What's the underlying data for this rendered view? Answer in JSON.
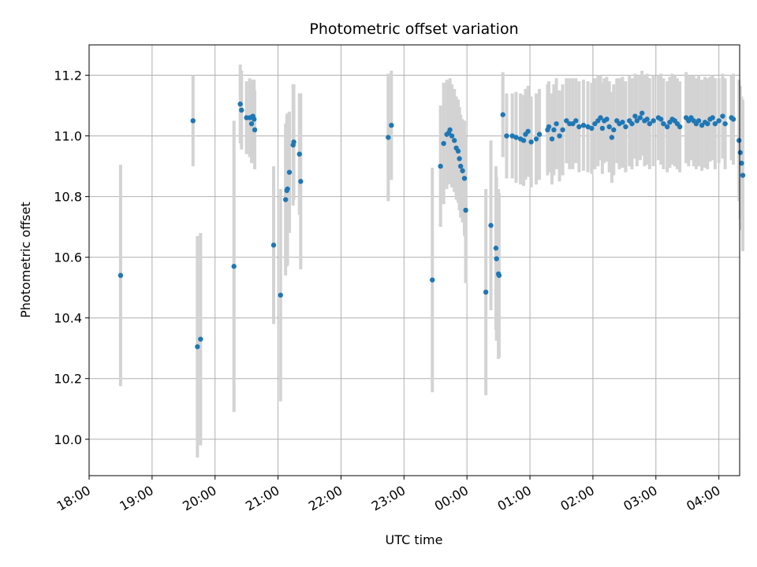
{
  "chart_data": {
    "type": "scatter",
    "title": "Photometric offset variation",
    "xlabel": "UTC time",
    "ylabel": "Photometric offset",
    "grid": true,
    "x_unit": "hours since 18:00 UTC",
    "xlim": [
      0,
      10.33
    ],
    "ylim": [
      9.88,
      11.3
    ],
    "x_ticks": [
      {
        "value": 0,
        "label": "18:00"
      },
      {
        "value": 1,
        "label": "19:00"
      },
      {
        "value": 2,
        "label": "20:00"
      },
      {
        "value": 3,
        "label": "21:00"
      },
      {
        "value": 4,
        "label": "22:00"
      },
      {
        "value": 5,
        "label": "23:00"
      },
      {
        "value": 6,
        "label": "00:00"
      },
      {
        "value": 7,
        "label": "01:00"
      },
      {
        "value": 8,
        "label": "02:00"
      },
      {
        "value": 9,
        "label": "03:00"
      },
      {
        "value": 10,
        "label": "04:00"
      }
    ],
    "y_ticks": [
      {
        "value": 10.0,
        "label": "10.0"
      },
      {
        "value": 10.2,
        "label": "10.2"
      },
      {
        "value": 10.4,
        "label": "10.4"
      },
      {
        "value": 10.6,
        "label": "10.6"
      },
      {
        "value": 10.8,
        "label": "10.8"
      },
      {
        "value": 11.0,
        "label": "11.0"
      },
      {
        "value": 11.2,
        "label": "11.2"
      }
    ],
    "colors": {
      "points": "#1f77b4",
      "errorbars": "#d3d3d3",
      "grid": "#b0b0b0"
    },
    "series": [
      {
        "name": "Photometric offset",
        "points": [
          {
            "x": 0.5,
            "y": 10.54,
            "err": 0.365
          },
          {
            "x": 1.65,
            "y": 11.05,
            "err": 0.15
          },
          {
            "x": 1.72,
            "y": 10.305,
            "err": 0.365
          },
          {
            "x": 1.77,
            "y": 10.33,
            "err": 0.35
          },
          {
            "x": 2.3,
            "y": 10.57,
            "err": 0.48
          },
          {
            "x": 2.4,
            "y": 11.105,
            "err": 0.13
          },
          {
            "x": 2.42,
            "y": 11.085,
            "err": 0.13
          },
          {
            "x": 2.5,
            "y": 11.06,
            "err": 0.12
          },
          {
            "x": 2.55,
            "y": 11.06,
            "err": 0.13
          },
          {
            "x": 2.58,
            "y": 11.04,
            "err": 0.13
          },
          {
            "x": 2.6,
            "y": 11.065,
            "err": 0.12
          },
          {
            "x": 2.62,
            "y": 11.055,
            "err": 0.13
          },
          {
            "x": 2.63,
            "y": 11.02,
            "err": 0.13
          },
          {
            "x": 2.93,
            "y": 10.64,
            "err": 0.26
          },
          {
            "x": 3.04,
            "y": 10.475,
            "err": 0.35
          },
          {
            "x": 3.12,
            "y": 10.79,
            "err": 0.25
          },
          {
            "x": 3.14,
            "y": 10.82,
            "err": 0.25
          },
          {
            "x": 3.15,
            "y": 10.825,
            "err": 0.25
          },
          {
            "x": 3.18,
            "y": 10.88,
            "err": 0.2
          },
          {
            "x": 3.24,
            "y": 10.97,
            "err": 0.2
          },
          {
            "x": 3.25,
            "y": 10.98,
            "err": 0.19
          },
          {
            "x": 3.34,
            "y": 10.94,
            "err": 0.2
          },
          {
            "x": 3.36,
            "y": 10.85,
            "err": 0.29
          },
          {
            "x": 4.75,
            "y": 10.995,
            "err": 0.21
          },
          {
            "x": 4.8,
            "y": 11.035,
            "err": 0.18
          },
          {
            "x": 5.45,
            "y": 10.525,
            "err": 0.37
          },
          {
            "x": 5.58,
            "y": 10.9,
            "err": 0.2
          },
          {
            "x": 5.63,
            "y": 10.975,
            "err": 0.2
          },
          {
            "x": 5.68,
            "y": 11.005,
            "err": 0.18
          },
          {
            "x": 5.71,
            "y": 11.01,
            "err": 0.17
          },
          {
            "x": 5.73,
            "y": 11.02,
            "err": 0.17
          },
          {
            "x": 5.76,
            "y": 11.0,
            "err": 0.17
          },
          {
            "x": 5.8,
            "y": 10.985,
            "err": 0.17
          },
          {
            "x": 5.83,
            "y": 10.96,
            "err": 0.17
          },
          {
            "x": 5.86,
            "y": 10.95,
            "err": 0.17
          },
          {
            "x": 5.88,
            "y": 10.925,
            "err": 0.17
          },
          {
            "x": 5.9,
            "y": 10.9,
            "err": 0.17
          },
          {
            "x": 5.93,
            "y": 10.885,
            "err": 0.17
          },
          {
            "x": 5.96,
            "y": 10.86,
            "err": 0.19
          },
          {
            "x": 5.98,
            "y": 10.755,
            "err": 0.24
          },
          {
            "x": 6.3,
            "y": 10.485,
            "err": 0.34
          },
          {
            "x": 6.38,
            "y": 10.705,
            "err": 0.28
          },
          {
            "x": 6.46,
            "y": 10.63,
            "err": 0.27
          },
          {
            "x": 6.47,
            "y": 10.595,
            "err": 0.27
          },
          {
            "x": 6.5,
            "y": 10.545,
            "err": 0.28
          },
          {
            "x": 6.51,
            "y": 10.54,
            "err": 0.27
          },
          {
            "x": 6.57,
            "y": 11.07,
            "err": 0.14
          },
          {
            "x": 6.63,
            "y": 11.0,
            "err": 0.14
          },
          {
            "x": 6.72,
            "y": 11.0,
            "err": 0.14
          },
          {
            "x": 6.78,
            "y": 10.995,
            "err": 0.15
          },
          {
            "x": 6.85,
            "y": 10.99,
            "err": 0.15
          },
          {
            "x": 6.9,
            "y": 10.985,
            "err": 0.15
          },
          {
            "x": 6.93,
            "y": 11.005,
            "err": 0.15
          },
          {
            "x": 6.97,
            "y": 11.015,
            "err": 0.15
          },
          {
            "x": 7.02,
            "y": 10.98,
            "err": 0.15
          },
          {
            "x": 7.1,
            "y": 10.99,
            "err": 0.15
          },
          {
            "x": 7.15,
            "y": 11.005,
            "err": 0.15
          },
          {
            "x": 7.28,
            "y": 11.02,
            "err": 0.15
          },
          {
            "x": 7.3,
            "y": 11.03,
            "err": 0.15
          },
          {
            "x": 7.35,
            "y": 10.99,
            "err": 0.15
          },
          {
            "x": 7.38,
            "y": 11.02,
            "err": 0.15
          },
          {
            "x": 7.42,
            "y": 11.04,
            "err": 0.15
          },
          {
            "x": 7.47,
            "y": 11.0,
            "err": 0.15
          },
          {
            "x": 7.52,
            "y": 11.02,
            "err": 0.15
          },
          {
            "x": 7.58,
            "y": 11.05,
            "err": 0.14
          },
          {
            "x": 7.63,
            "y": 11.04,
            "err": 0.15
          },
          {
            "x": 7.68,
            "y": 11.04,
            "err": 0.15
          },
          {
            "x": 7.73,
            "y": 11.05,
            "err": 0.14
          },
          {
            "x": 7.78,
            "y": 11.03,
            "err": 0.15
          },
          {
            "x": 7.85,
            "y": 11.035,
            "err": 0.15
          },
          {
            "x": 7.92,
            "y": 11.03,
            "err": 0.15
          },
          {
            "x": 7.98,
            "y": 11.025,
            "err": 0.15
          },
          {
            "x": 8.03,
            "y": 11.04,
            "err": 0.15
          },
          {
            "x": 8.08,
            "y": 11.05,
            "err": 0.15
          },
          {
            "x": 8.12,
            "y": 11.06,
            "err": 0.14
          },
          {
            "x": 8.15,
            "y": 11.025,
            "err": 0.15
          },
          {
            "x": 8.18,
            "y": 11.05,
            "err": 0.14
          },
          {
            "x": 8.22,
            "y": 11.055,
            "err": 0.14
          },
          {
            "x": 8.26,
            "y": 11.03,
            "err": 0.15
          },
          {
            "x": 8.3,
            "y": 10.995,
            "err": 0.15
          },
          {
            "x": 8.33,
            "y": 11.02,
            "err": 0.15
          },
          {
            "x": 8.38,
            "y": 11.05,
            "err": 0.14
          },
          {
            "x": 8.42,
            "y": 11.04,
            "err": 0.15
          },
          {
            "x": 8.47,
            "y": 11.045,
            "err": 0.15
          },
          {
            "x": 8.52,
            "y": 11.03,
            "err": 0.15
          },
          {
            "x": 8.58,
            "y": 11.05,
            "err": 0.15
          },
          {
            "x": 8.62,
            "y": 11.04,
            "err": 0.15
          },
          {
            "x": 8.67,
            "y": 11.065,
            "err": 0.14
          },
          {
            "x": 8.7,
            "y": 11.05,
            "err": 0.15
          },
          {
            "x": 8.75,
            "y": 11.06,
            "err": 0.14
          },
          {
            "x": 8.78,
            "y": 11.075,
            "err": 0.14
          },
          {
            "x": 8.82,
            "y": 11.05,
            "err": 0.15
          },
          {
            "x": 8.86,
            "y": 11.055,
            "err": 0.15
          },
          {
            "x": 8.9,
            "y": 11.04,
            "err": 0.15
          },
          {
            "x": 8.96,
            "y": 11.05,
            "err": 0.15
          },
          {
            "x": 9.04,
            "y": 11.06,
            "err": 0.14
          },
          {
            "x": 9.08,
            "y": 11.055,
            "err": 0.15
          },
          {
            "x": 9.12,
            "y": 11.04,
            "err": 0.15
          },
          {
            "x": 9.18,
            "y": 11.03,
            "err": 0.15
          },
          {
            "x": 9.22,
            "y": 11.045,
            "err": 0.15
          },
          {
            "x": 9.26,
            "y": 11.055,
            "err": 0.15
          },
          {
            "x": 9.3,
            "y": 11.05,
            "err": 0.15
          },
          {
            "x": 9.34,
            "y": 11.04,
            "err": 0.15
          },
          {
            "x": 9.38,
            "y": 11.03,
            "err": 0.15
          },
          {
            "x": 9.48,
            "y": 11.06,
            "err": 0.15
          },
          {
            "x": 9.52,
            "y": 11.05,
            "err": 0.15
          },
          {
            "x": 9.56,
            "y": 11.06,
            "err": 0.14
          },
          {
            "x": 9.6,
            "y": 11.05,
            "err": 0.15
          },
          {
            "x": 9.64,
            "y": 11.04,
            "err": 0.15
          },
          {
            "x": 9.68,
            "y": 11.05,
            "err": 0.15
          },
          {
            "x": 9.73,
            "y": 11.035,
            "err": 0.15
          },
          {
            "x": 9.78,
            "y": 11.045,
            "err": 0.15
          },
          {
            "x": 9.82,
            "y": 11.04,
            "err": 0.15
          },
          {
            "x": 9.86,
            "y": 11.055,
            "err": 0.14
          },
          {
            "x": 9.9,
            "y": 11.06,
            "err": 0.14
          },
          {
            "x": 9.94,
            "y": 11.04,
            "err": 0.15
          },
          {
            "x": 10.0,
            "y": 11.05,
            "err": 0.14
          },
          {
            "x": 10.06,
            "y": 11.065,
            "err": 0.14
          },
          {
            "x": 10.1,
            "y": 11.04,
            "err": 0.15
          },
          {
            "x": 10.2,
            "y": 11.06,
            "err": 0.14
          },
          {
            "x": 10.23,
            "y": 11.055,
            "err": 0.15
          },
          {
            "x": 10.32,
            "y": 10.985,
            "err": 0.2
          },
          {
            "x": 10.34,
            "y": 10.945,
            "err": 0.22
          },
          {
            "x": 10.36,
            "y": 10.91,
            "err": 0.22
          },
          {
            "x": 10.38,
            "y": 10.87,
            "err": 0.25
          }
        ]
      }
    ]
  }
}
